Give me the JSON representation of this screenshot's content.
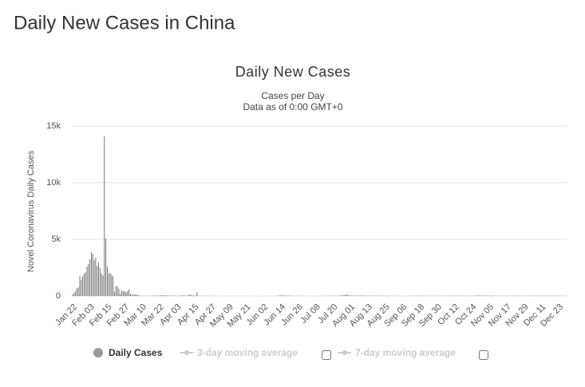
{
  "page_title": "Daily New Cases in China",
  "chart_data": {
    "type": "bar",
    "title": "Daily New Cases",
    "subtitle": [
      "Cases per Day",
      "Data as of 0:00 GMT+0"
    ],
    "y_label": "Novel Coronavirus Daily Cases",
    "categories": [
      "Jan 22",
      null,
      null,
      null,
      null,
      null,
      null,
      null,
      null,
      null,
      null,
      null,
      "Feb 03",
      null,
      null,
      null,
      null,
      null,
      null,
      null,
      null,
      null,
      null,
      null,
      "Feb 15",
      null,
      null,
      null,
      null,
      null,
      null,
      null,
      null,
      null,
      null,
      null,
      "Feb 27",
      null,
      null,
      null,
      null,
      null,
      null,
      null,
      null,
      null,
      null,
      null,
      "Mar 10",
      null,
      null,
      null,
      null,
      null,
      null,
      null,
      null,
      null,
      null,
      null,
      "Mar 22",
      null,
      null,
      null,
      null,
      null,
      null,
      null,
      null,
      null,
      null,
      null,
      "Apr 03",
      null,
      null,
      null,
      null,
      null,
      null,
      null,
      null,
      null,
      null,
      null,
      "Apr 15",
      null,
      null,
      null,
      null,
      null,
      null,
      null,
      null,
      null,
      null,
      null,
      "Apr 27",
      null,
      null,
      null,
      null,
      null,
      null,
      null,
      null,
      null,
      null,
      null,
      "May 09",
      null,
      null,
      null,
      null,
      null,
      null,
      null,
      null,
      null,
      null,
      null,
      "May 21",
      null,
      null,
      null,
      null,
      null,
      null,
      null,
      null,
      null,
      null,
      null,
      "Jun 02",
      null,
      null,
      null,
      null,
      null,
      null,
      null,
      null,
      null,
      null,
      null,
      "Jun 14",
      null,
      null,
      null,
      null,
      null,
      null,
      null,
      null,
      null,
      null,
      null,
      "Jun 26",
      null,
      null,
      null,
      null,
      null,
      null,
      null,
      null,
      null,
      null,
      null,
      "Jul 08",
      null,
      null,
      null,
      null,
      null,
      null,
      null,
      null,
      null,
      null,
      null,
      "Jul 20",
      null,
      null,
      null,
      null,
      null,
      null,
      null,
      null,
      null,
      null,
      null,
      "Aug 01",
      null,
      null,
      null,
      null,
      null,
      null,
      null,
      null,
      null,
      null,
      null,
      "Aug 13",
      null,
      null,
      null,
      null,
      null,
      null,
      null,
      null,
      null,
      null,
      null,
      "Aug 25",
      null,
      null,
      null,
      null,
      null,
      null,
      null,
      null,
      null,
      null,
      null,
      "Sep 06",
      null,
      null,
      null,
      null,
      null,
      null,
      null,
      null,
      null,
      null,
      null,
      "Sep 18",
      null,
      null,
      null,
      null,
      null,
      null,
      null,
      null,
      null,
      null,
      null,
      "Sep 30",
      null,
      null,
      null,
      null,
      null,
      null,
      null,
      null,
      null,
      null,
      null,
      "Oct 12",
      null,
      null,
      null,
      null,
      null,
      null,
      null,
      null,
      null,
      null,
      null,
      "Oct 24",
      null,
      null,
      null,
      null,
      null,
      null,
      null,
      null,
      null,
      null,
      null,
      "Nov 05",
      null,
      null,
      null,
      null,
      null,
      null,
      null,
      null,
      null,
      null,
      null,
      "Nov 17",
      null,
      null,
      null,
      null,
      null,
      null,
      null,
      null,
      null,
      null,
      null,
      "Nov 29",
      null,
      null,
      null,
      null,
      null,
      null,
      null,
      null,
      null,
      null,
      null,
      "Dec 11",
      null,
      null,
      null,
      null,
      null,
      null,
      null,
      null,
      null,
      null,
      null,
      "Dec 23",
      null,
      null,
      null,
      null,
      null
    ],
    "series": [
      {
        "name": "Daily Cases",
        "color": "#666666",
        "values": [
          131,
          259,
          444,
          688,
          769,
          1771,
          1459,
          1737,
          1981,
          2099,
          2589,
          2825,
          3235,
          3884,
          3694,
          3143,
          3385,
          2652,
          2973,
          2467,
          2015,
          1820,
          14108,
          5090,
          2641,
          2008,
          2048,
          1888,
          1749,
          391,
          889,
          823,
          648,
          214,
          508,
          406,
          433,
          327,
          427,
          573,
          202,
          125,
          119,
          139,
          143,
          99,
          44,
          40,
          19,
          15,
          8,
          11,
          20,
          16,
          21,
          13,
          34,
          39,
          41,
          46,
          39,
          78,
          47,
          67,
          55,
          54,
          45,
          31,
          48,
          36,
          35,
          31,
          19,
          30,
          39,
          32,
          62,
          63,
          42,
          46,
          99,
          108,
          89,
          46,
          46,
          26,
          352,
          16,
          12,
          11,
          12,
          30,
          10,
          12,
          11,
          3,
          6,
          22,
          4,
          12,
          12,
          1,
          2,
          1,
          1,
          2,
          4,
          1,
          1,
          17,
          1,
          7,
          3,
          7,
          3,
          8,
          4,
          6,
          0,
          4,
          3,
          11,
          1,
          3,
          3,
          7,
          2,
          1,
          2,
          0,
          6,
          1,
          4,
          7,
          7,
          6,
          4,
          4,
          3,
          3,
          6,
          11,
          8,
          57,
          57,
          36,
          44,
          40,
          32,
          35,
          29,
          30,
          25,
          12,
          14,
          13,
          12,
          14,
          14,
          19,
          12,
          3,
          4,
          5,
          5,
          8,
          7,
          7,
          10,
          8,
          5,
          8,
          7,
          6,
          3,
          11,
          17,
          22,
          16,
          15,
          14,
          22,
          15,
          22,
          34,
          46,
          61,
          68,
          64,
          101,
          127,
          45,
          49,
          45,
          36,
          43,
          37,
          45,
          36,
          23,
          49,
          44,
          25,
          19,
          22,
          36,
          33,
          22,
          13,
          28,
          22,
          15,
          32,
          31,
          16,
          22,
          22,
          15,
          15,
          9,
          11,
          14,
          7,
          10,
          8,
          11,
          11,
          10,
          10,
          7,
          10,
          6,
          8,
          24,
          12,
          19,
          10,
          13,
          14,
          32,
          14,
          24,
          20,
          13,
          10,
          10,
          12,
          15,
          12,
          21,
          6,
          10,
          11,
          19,
          21,
          20,
          11,
          11,
          9,
          17,
          14,
          21,
          14,
          21,
          13,
          14,
          18,
          13,
          24,
          13,
          22,
          12,
          13,
          24,
          18,
          14,
          14,
          23,
          21,
          42,
          18,
          49,
          47,
          25,
          33,
          46,
          30,
          24,
          27,
          32,
          34,
          13,
          26,
          23,
          21,
          20,
          8,
          11,
          13,
          16,
          13,
          15,
          14,
          17,
          14,
          21,
          22,
          19,
          18,
          16,
          18,
          18,
          10,
          12,
          14,
          24,
          16,
          15,
          16,
          13,
          23,
          16,
          14,
          14,
          24,
          19,
          19,
          24,
          13,
          15,
          23,
          22,
          24,
          29,
          23,
          23,
          26,
          20,
          13,
          19,
          22,
          25
        ]
      }
    ],
    "inactive_series": [
      "3-day moving average",
      "7-day moving average"
    ],
    "ylim": [
      0,
      15000
    ],
    "yticks": [
      0,
      {
        "value": 5000,
        "label": "5k"
      },
      {
        "value": 10000,
        "label": "10k"
      },
      {
        "value": 15000,
        "label": "15k"
      }
    ],
    "grid": true
  }
}
